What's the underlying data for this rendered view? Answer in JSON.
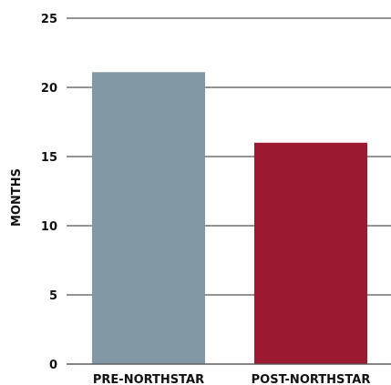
{
  "chart_data": {
    "type": "bar",
    "categories": [
      "PRE-NORTHSTAR",
      "POST-NORTHSTAR"
    ],
    "values": [
      21.1,
      16
    ],
    "colors": [
      "#8298a4",
      "#9b1a31"
    ],
    "ylabel": "MONTHS",
    "ylim": [
      0,
      25
    ],
    "yticks": [
      "0",
      "5",
      "10",
      "15",
      "20",
      "25"
    ],
    "grid": true,
    "legend": "none"
  }
}
